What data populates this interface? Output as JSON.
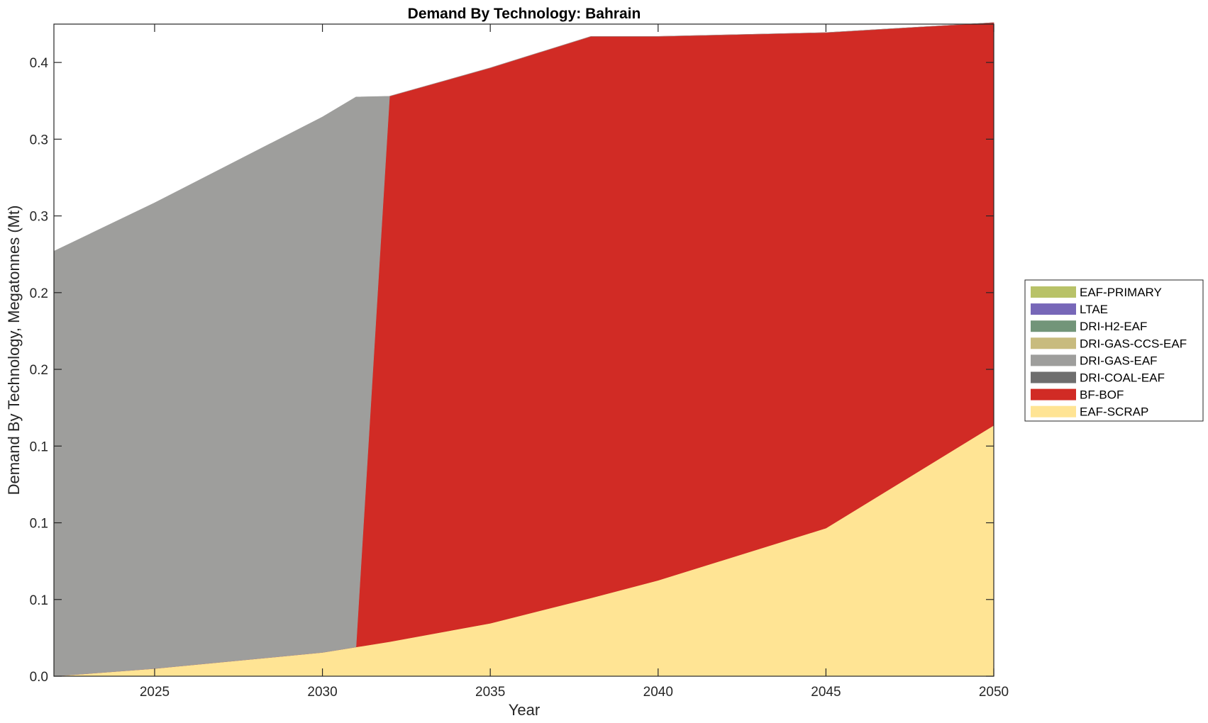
{
  "chart_data": {
    "type": "area",
    "title": "Demand By Technology: Bahrain",
    "xlabel": "Year",
    "ylabel": "Demand By Technology, Megatonnes (Mt)",
    "xlim": [
      2022,
      2050
    ],
    "ylim": [
      0,
      0.425
    ],
    "x_ticks": [
      2025,
      2030,
      2035,
      2040,
      2045,
      2050
    ],
    "y_ticks": [
      0,
      0.05,
      0.1,
      0.15,
      0.2,
      0.25,
      0.3,
      0.35,
      0.4
    ],
    "y_tick_labels": [
      "0.0",
      "0.1",
      "0.1",
      "0.1",
      "0.2",
      "0.2",
      "0.3",
      "0.3",
      "0.4"
    ],
    "grid": false,
    "legend_position": "right",
    "stacked": true,
    "series": [
      {
        "name": "EAF-SCRAP",
        "color": "#ffe494",
        "x": [
          2022,
          2025,
          2030,
          2031,
          2032,
          2035,
          2038,
          2040,
          2045,
          2050
        ],
        "values": [
          0.0,
          0.005,
          0.0155,
          0.019,
          0.0225,
          0.0345,
          0.051,
          0.0625,
          0.0965,
          0.1635
        ]
      },
      {
        "name": "BF-BOF",
        "color": "#d12b25",
        "x": [
          2022,
          2025,
          2030,
          2031,
          2032,
          2035,
          2038,
          2040,
          2045,
          2050
        ],
        "values": [
          0.0,
          0.0,
          0.0,
          0.0,
          0.3555,
          0.362,
          0.366,
          0.3545,
          0.323,
          0.2625
        ]
      },
      {
        "name": "DRI-COAL-EAF",
        "color": "#6e6e6e",
        "x": [
          2022,
          2050
        ],
        "values": [
          0,
          0
        ]
      },
      {
        "name": "DRI-GAS-EAF",
        "color": "#9e9e9c",
        "x": [
          2022,
          2025,
          2030,
          2031,
          2032,
          2035,
          2038,
          2040,
          2045,
          2050
        ],
        "values": [
          0.277,
          0.3035,
          0.349,
          0.3585,
          0.0,
          0.0,
          0.0,
          0.0,
          0.0,
          0.0
        ]
      },
      {
        "name": "DRI-GAS-CCS-EAF",
        "color": "#c8bb7e",
        "x": [
          2022,
          2050
        ],
        "values": [
          0,
          0
        ]
      },
      {
        "name": "DRI-H2-EAF",
        "color": "#729579",
        "x": [
          2022,
          2050
        ],
        "values": [
          0,
          0
        ]
      },
      {
        "name": "LTAE",
        "color": "#7767b8",
        "x": [
          2022,
          2050
        ],
        "values": [
          0,
          0
        ]
      },
      {
        "name": "EAF-PRIMARY",
        "color": "#b8c268",
        "x": [
          2022,
          2050
        ],
        "values": [
          0,
          0
        ]
      }
    ]
  }
}
